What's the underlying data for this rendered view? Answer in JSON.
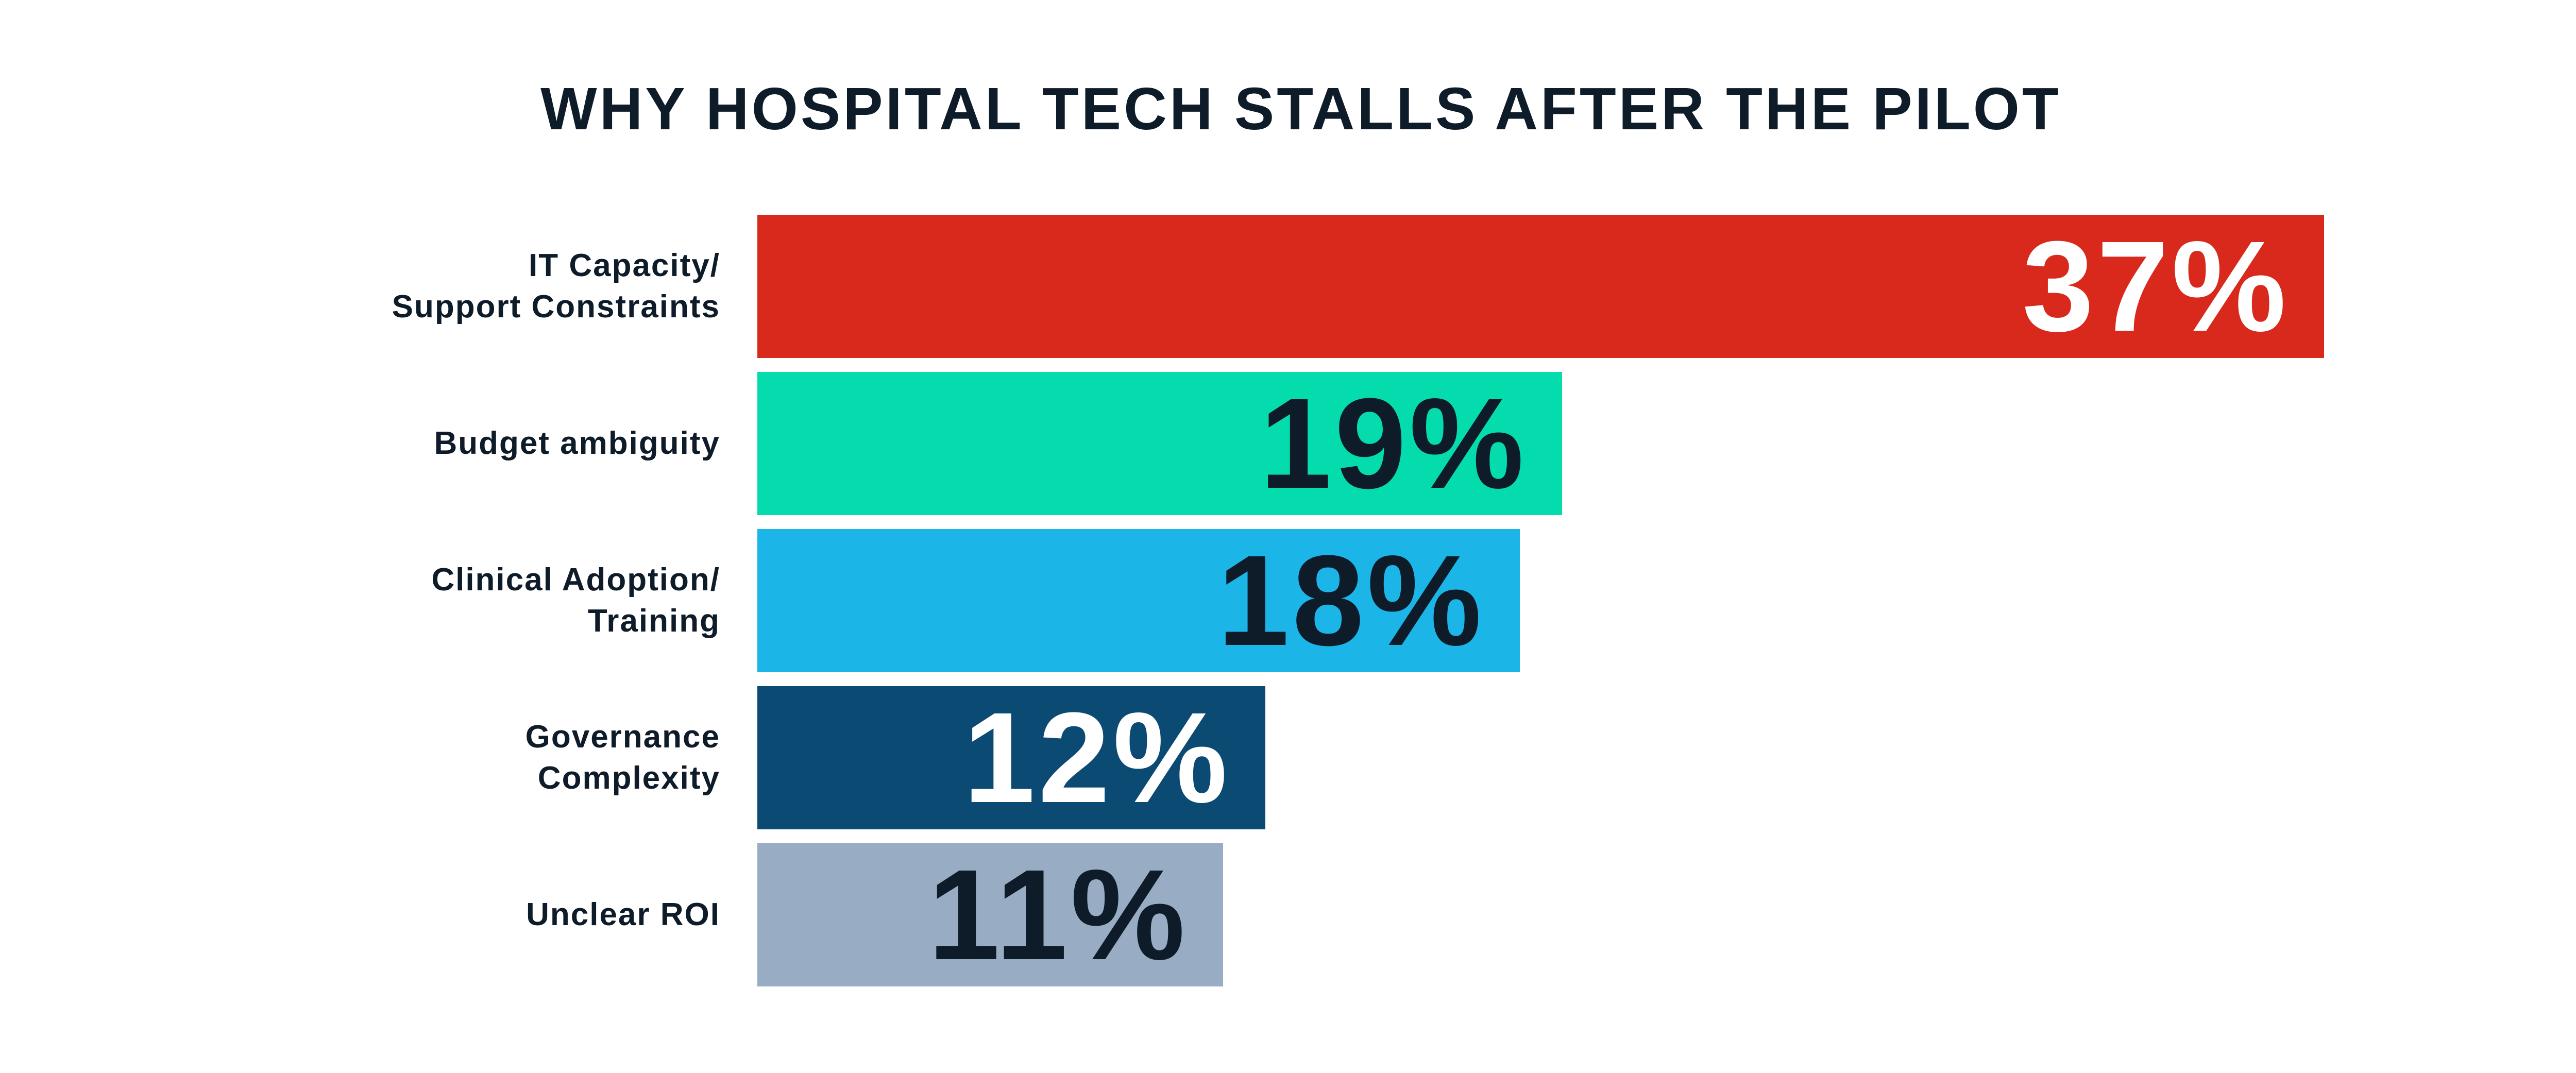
{
  "page": {
    "background_color": "#ffffff",
    "text_color": "#0e1b29"
  },
  "chart_data": {
    "type": "bar",
    "orientation": "horizontal",
    "title": "WHY HOSPITAL TECH STALLS AFTER THE PILOT",
    "title_color": "#0e1b29",
    "xlabel": "",
    "ylabel": "",
    "axis_visible": false,
    "grid": false,
    "legend": false,
    "xlim": [
      0,
      43
    ],
    "categories": [
      "IT Capacity/ Support Constraints",
      "Budget ambiguity",
      "Clinical Adoption/ Training",
      "Governance Complexity",
      "Unclear ROI"
    ],
    "values": [
      37,
      19,
      18,
      12,
      11
    ],
    "bars": [
      {
        "label_lines": [
          "IT Capacity/",
          "Support Constraints"
        ],
        "value": 37,
        "value_label": "37%",
        "bar_color": "#d8291c",
        "value_color": "#ffffff"
      },
      {
        "label_lines": [
          "Budget ambiguity"
        ],
        "value": 19,
        "value_label": "19%",
        "bar_color": "#04dcae",
        "value_color": "#0e1b29"
      },
      {
        "label_lines": [
          "Clinical Adoption/",
          "Training"
        ],
        "value": 18,
        "value_label": "18%",
        "bar_color": "#1cb5e8",
        "value_color": "#0e1b29"
      },
      {
        "label_lines": [
          "Governance",
          "Complexity"
        ],
        "value": 12,
        "value_label": "12%",
        "bar_color": "#0b4a72",
        "value_color": "#ffffff"
      },
      {
        "label_lines": [
          "Unclear ROI"
        ],
        "value": 11,
        "value_label": "11%",
        "bar_color": "#98adc3",
        "value_color": "#0e1b29"
      }
    ]
  }
}
